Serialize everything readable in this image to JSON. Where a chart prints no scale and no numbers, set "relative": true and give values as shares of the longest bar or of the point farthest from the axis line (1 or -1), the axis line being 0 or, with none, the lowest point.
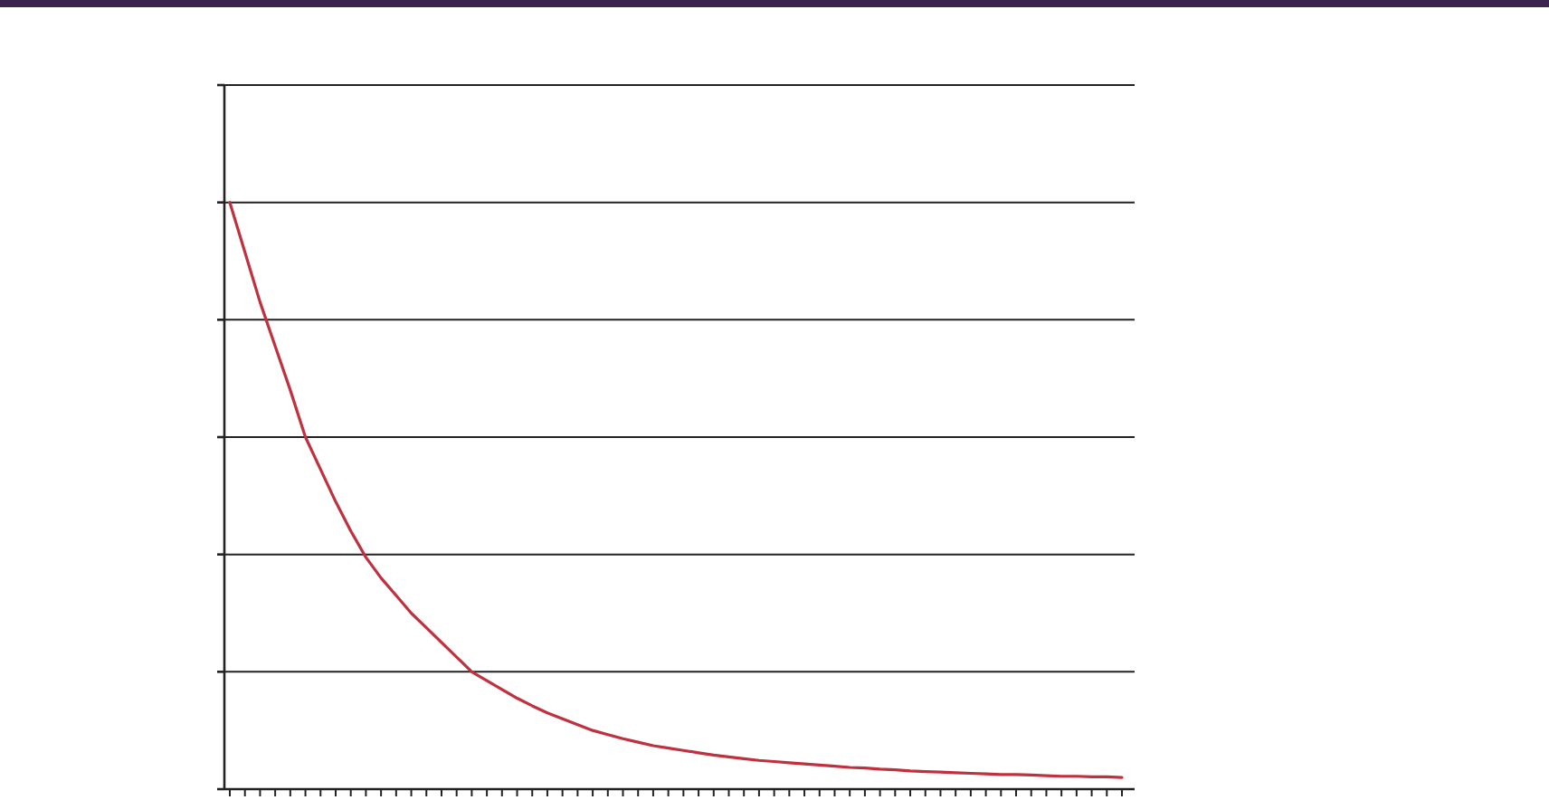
{
  "chart_data": {
    "type": "line",
    "relative": true,
    "grid": "y",
    "marker": "none",
    "line_style": "solid",
    "categories": [
      null,
      null,
      null,
      null,
      null,
      null,
      null,
      null,
      null,
      null,
      null,
      null,
      null,
      null,
      null,
      null,
      null,
      null,
      null,
      null,
      null,
      null,
      null,
      null,
      null,
      null,
      null,
      null,
      null,
      null,
      null,
      null,
      null,
      null,
      null,
      null,
      null,
      null,
      null,
      null,
      null,
      null,
      null,
      null,
      null,
      null,
      null,
      null,
      null,
      null,
      null,
      null,
      null,
      null,
      null,
      null,
      null,
      null,
      null,
      null
    ],
    "series": [
      {
        "color": "#c0313f",
        "values": [
          1.0,
          0.915,
          0.83,
          0.755,
          0.68,
          0.6,
          0.545,
          0.49,
          0.44,
          0.395,
          0.36,
          0.33,
          0.3,
          0.275,
          0.25,
          0.225,
          0.2,
          0.185,
          0.17,
          0.155,
          0.142,
          0.13,
          0.12,
          0.11,
          0.1,
          0.093,
          0.086,
          0.08,
          0.074,
          0.07,
          0.066,
          0.062,
          0.058,
          0.055,
          0.052,
          0.049,
          0.047,
          0.045,
          0.043,
          0.041,
          0.039,
          0.037,
          0.036,
          0.034,
          0.033,
          0.031,
          0.03,
          0.029,
          0.028,
          0.027,
          0.026,
          0.025,
          0.025,
          0.024,
          0.023,
          0.022,
          0.022,
          0.021,
          0.021,
          0.02
        ]
      }
    ]
  }
}
